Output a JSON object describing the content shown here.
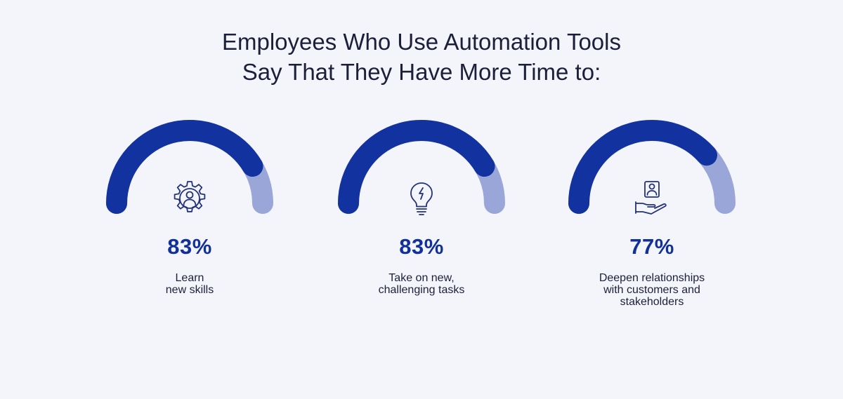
{
  "title": {
    "line1": "Employees Who Use Automation Tools",
    "line2": "Say That They Have More Time to:"
  },
  "colors": {
    "background": "#f4f5fa",
    "arc_filled": "#1232a0",
    "arc_remaining": "#9aa6d8",
    "text": "#1c1f3a",
    "accent": "#12309a"
  },
  "chart_data": {
    "type": "gauge",
    "max": 100,
    "items": [
      {
        "value": 83,
        "value_label": "83%",
        "label_lines": [
          "Learn",
          "new skills"
        ],
        "icon": "gear-person-icon"
      },
      {
        "value": 83,
        "value_label": "83%",
        "label_lines": [
          "Take on new,",
          "challenging tasks"
        ],
        "icon": "lightbulb-icon"
      },
      {
        "value": 77,
        "value_label": "77%",
        "label_lines": [
          "Deepen relationships",
          "with customers and",
          "stakeholders"
        ],
        "icon": "hand-person-icon"
      }
    ]
  }
}
